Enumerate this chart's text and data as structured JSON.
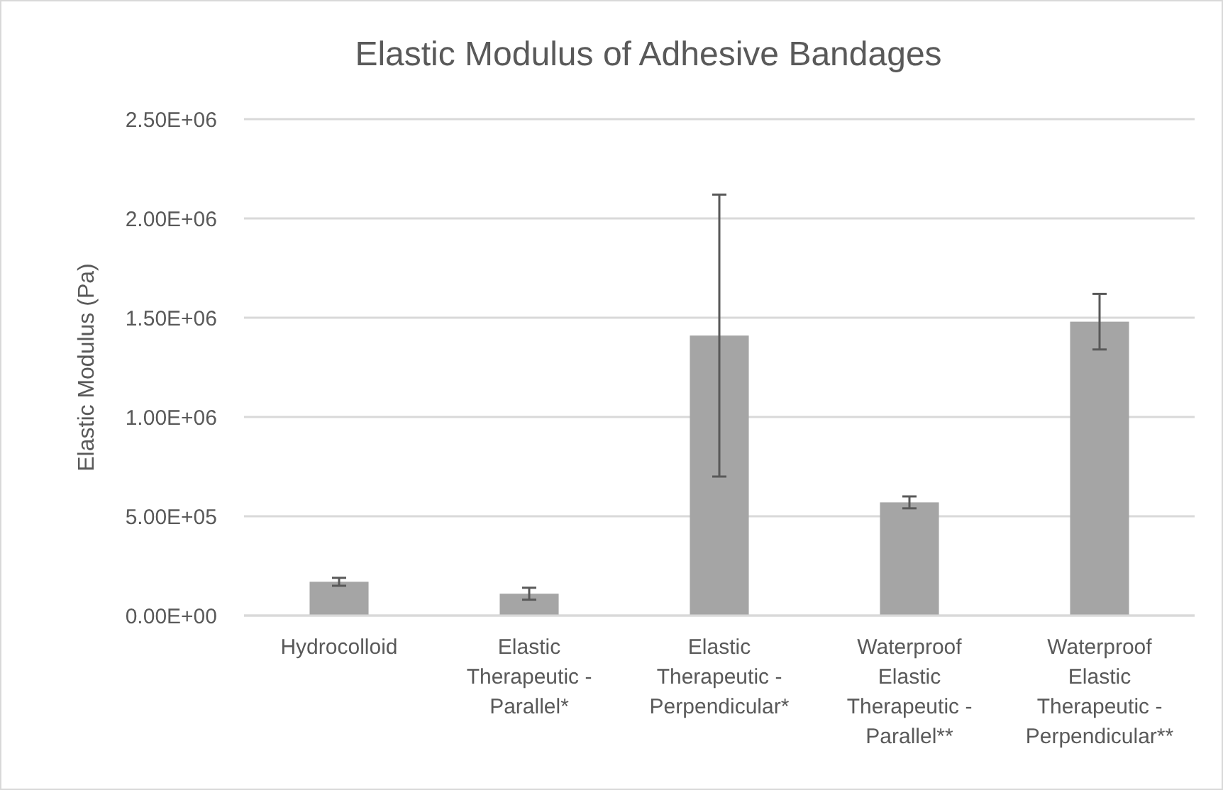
{
  "chart_data": {
    "type": "bar",
    "title": "Elastic Modulus of Adhesive Bandages",
    "ylabel": "Elastic Modulus (Pa)",
    "categories": [
      "Hydrocolloid",
      "Elastic Therapeutic - Parallel*",
      "Elastic Therapeutic - Perpendicular*",
      "Waterproof Elastic Therapeutic - Parallel**",
      "Waterproof Elastic Therapeutic - Perpendicular**"
    ],
    "values": [
      170000,
      110000,
      1410000,
      570000,
      1480000
    ],
    "errors": [
      20000,
      30000,
      710000,
      30000,
      140000
    ],
    "color": "#a5a5a5",
    "ylim": [
      0,
      2500000
    ],
    "yticks": [
      {
        "value": 0,
        "label": "0.00E+00"
      },
      {
        "value": 500000,
        "label": "5.00E+05"
      },
      {
        "value": 1000000,
        "label": "1.00E+06"
      },
      {
        "value": 1500000,
        "label": "1.50E+06"
      },
      {
        "value": 2000000,
        "label": "2.00E+06"
      },
      {
        "value": 2500000,
        "label": "2.50E+06"
      }
    ],
    "grid": "y"
  }
}
